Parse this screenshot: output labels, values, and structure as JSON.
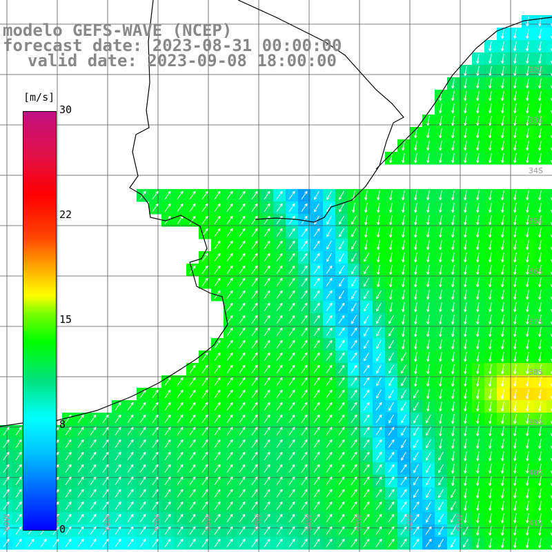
{
  "title": {
    "line1": "modelo GEFS-WAVE (NCEP)",
    "line2": "forecast date: 2023-08-31 00:00:00",
    "line3": "valid date: 2023-09-08 18:00:00"
  },
  "colorbar": {
    "units": "[m/s]",
    "ticks": [
      "30",
      "22",
      "15",
      "8",
      "0"
    ],
    "tick_values": [
      30,
      22,
      15,
      8,
      0
    ],
    "range": [
      0,
      30
    ]
  },
  "map": {
    "lat_labels": [
      "32S",
      "33S",
      "34S",
      "35S",
      "36S",
      "37S",
      "38S",
      "39S",
      "40S",
      "41S"
    ],
    "lon_labels": [
      "60W",
      "59W",
      "58W",
      "57W",
      "56W",
      "55W",
      "54W",
      "53W",
      "52W",
      "51W"
    ],
    "wind_speed_legend_colors": [
      "#0000ff",
      "#00bfff",
      "#00ffff",
      "#00ff00",
      "#ffff00",
      "#ff0000",
      "#c01080"
    ],
    "coast_color": "#000000",
    "grid_color": "#555555",
    "arrow_color": "#ffffff"
  }
}
